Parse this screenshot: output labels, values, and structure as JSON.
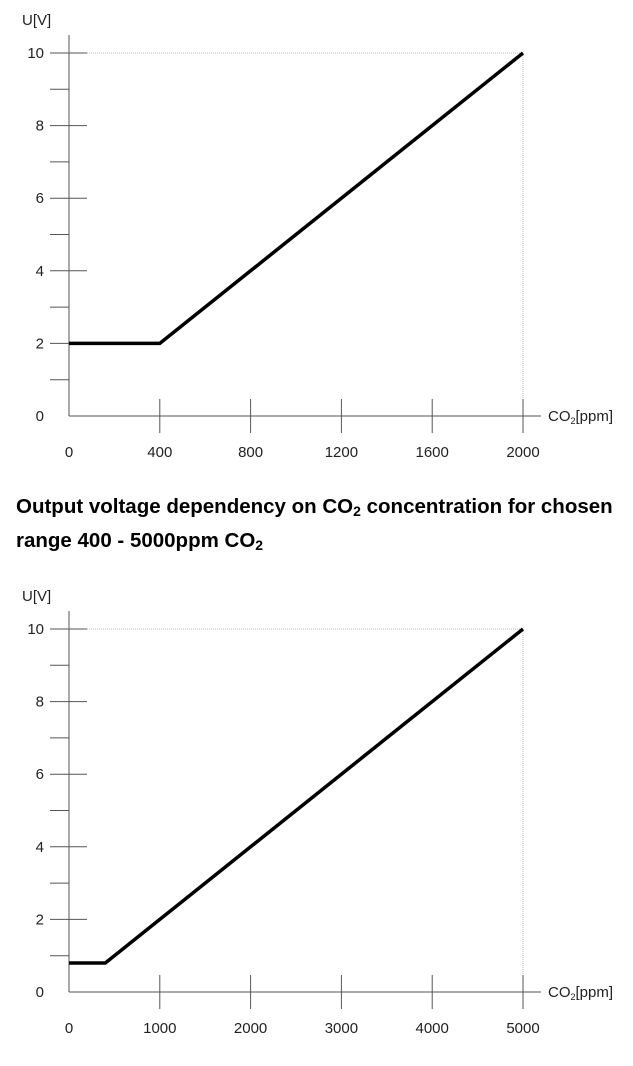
{
  "caption": {
    "part1": "Output voltage dependency on CO",
    "sub1": "2",
    "part2": " concentration for chosen range 400 - 5000ppm CO",
    "sub2": "2"
  },
  "chart_data": [
    {
      "type": "line",
      "ylabel": "U[V]",
      "xlabel_main": "CO",
      "xlabel_sub": "2",
      "xlabel_unit": "[ppm]",
      "x_ticks": [
        0,
        400,
        800,
        1200,
        1600,
        2000
      ],
      "y_ticks": [
        0,
        2,
        4,
        6,
        8,
        10
      ],
      "xlim": [
        0,
        2000
      ],
      "ylim": [
        0,
        10
      ],
      "grid": "dotted lines at max x and max y only",
      "line_color": "#000000",
      "series": [
        {
          "x": [
            0,
            400,
            2000
          ],
          "y": [
            2,
            2,
            10
          ]
        }
      ]
    },
    {
      "type": "line",
      "ylabel": "U[V]",
      "xlabel_main": "CO",
      "xlabel_sub": "2",
      "xlabel_unit": "[ppm]",
      "x_ticks": [
        0,
        1000,
        2000,
        3000,
        4000,
        5000
      ],
      "y_ticks": [
        0,
        2,
        4,
        6,
        8,
        10
      ],
      "xlim": [
        0,
        5000
      ],
      "ylim": [
        0,
        10
      ],
      "grid": "dotted lines at max x and max y only",
      "line_color": "#000000",
      "series": [
        {
          "x": [
            0,
            400,
            5000
          ],
          "y": [
            0.8,
            0.8,
            10
          ]
        }
      ]
    }
  ]
}
